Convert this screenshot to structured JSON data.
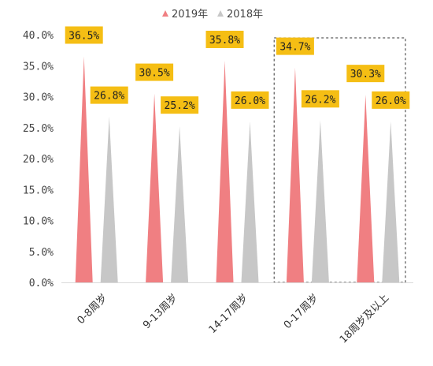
{
  "chart_data": {
    "type": "bar",
    "mark_shape": "pointed-triangle",
    "categories": [
      "0-8周岁",
      "9-13周岁",
      "14-17周岁",
      "0-17周岁",
      "18周岁及以上"
    ],
    "series": [
      {
        "name": "2019年",
        "values": [
          36.5,
          30.5,
          35.8,
          34.7,
          30.3
        ],
        "labels": [
          "36.5%",
          "30.5%",
          "35.8%",
          "34.7%",
          "30.3%"
        ],
        "color": "#f07f82"
      },
      {
        "name": "2018年",
        "values": [
          26.8,
          25.2,
          26.0,
          26.2,
          26.0
        ],
        "labels": [
          "26.8%",
          "25.2%",
          "26.0%",
          "26.2%",
          "26.0%"
        ],
        "color": "#c7c7c7"
      }
    ],
    "ylim": [
      0,
      40
    ],
    "yticks": [
      0,
      5,
      10,
      15,
      20,
      25,
      30,
      35,
      40
    ],
    "ytick_labels": [
      "0.0%",
      "5.0%",
      "10.0%",
      "15.0%",
      "20.0%",
      "25.0%",
      "30.0%",
      "35.0%",
      "40.0%"
    ],
    "grid": false,
    "legend_position": "top-center",
    "label_box_color": "#f5be14",
    "highlight_box_categories": [
      "0-17周岁",
      "18周岁及以上"
    ]
  }
}
